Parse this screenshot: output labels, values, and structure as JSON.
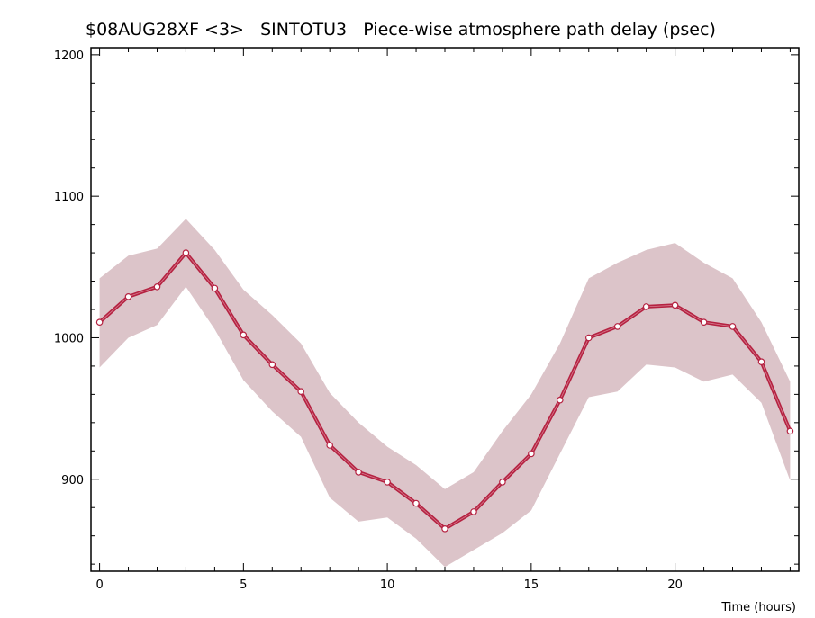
{
  "chart_data": {
    "type": "line",
    "title": "$08AUG28XF <3>   SINTOTU3   Piece-wise atmosphere path delay (psec)",
    "xlabel": "Time (hours)",
    "ylabel": "",
    "xlim": [
      -0.3,
      24.3
    ],
    "ylim": [
      835,
      1205
    ],
    "x_ticks": [
      0,
      5,
      10,
      15,
      20
    ],
    "y_ticks": [
      900,
      1000,
      1100,
      1200
    ],
    "x_tick_labels": [
      "0",
      "5",
      "10",
      "15",
      "20"
    ],
    "y_tick_labels": [
      "900",
      "1000",
      "1100",
      "1200"
    ],
    "x_minor_step": 1,
    "y_minor_step": 20,
    "grid": false,
    "colors": {
      "line": "#b52241",
      "band": "#dcc4c9",
      "marker_fill": "#ffffff",
      "axis": "#000000"
    },
    "series": [
      {
        "x": [
          0,
          1,
          2,
          3,
          4,
          5,
          6,
          7,
          8,
          9,
          10,
          11,
          12,
          13,
          14,
          15,
          16,
          17,
          18,
          19,
          20,
          21,
          22,
          23,
          24
        ],
        "values": [
          1011,
          1029,
          1036,
          1060,
          1035,
          1002,
          981,
          962,
          924,
          905,
          898,
          883,
          865,
          877,
          898,
          918,
          956,
          1000,
          1008,
          1022,
          1023,
          1011,
          1008,
          983,
          934
        ],
        "upper": [
          1042,
          1058,
          1063,
          1084,
          1062,
          1034,
          1016,
          996,
          961,
          940,
          923,
          910,
          893,
          905,
          934,
          960,
          996,
          1042,
          1053,
          1062,
          1067,
          1053,
          1042,
          1011,
          969
        ],
        "lower": [
          979,
          1000,
          1009,
          1036,
          1006,
          970,
          948,
          930,
          887,
          870,
          873,
          858,
          838,
          850,
          862,
          878,
          918,
          958,
          962,
          981,
          979,
          969,
          974,
          954,
          899
        ]
      }
    ]
  }
}
